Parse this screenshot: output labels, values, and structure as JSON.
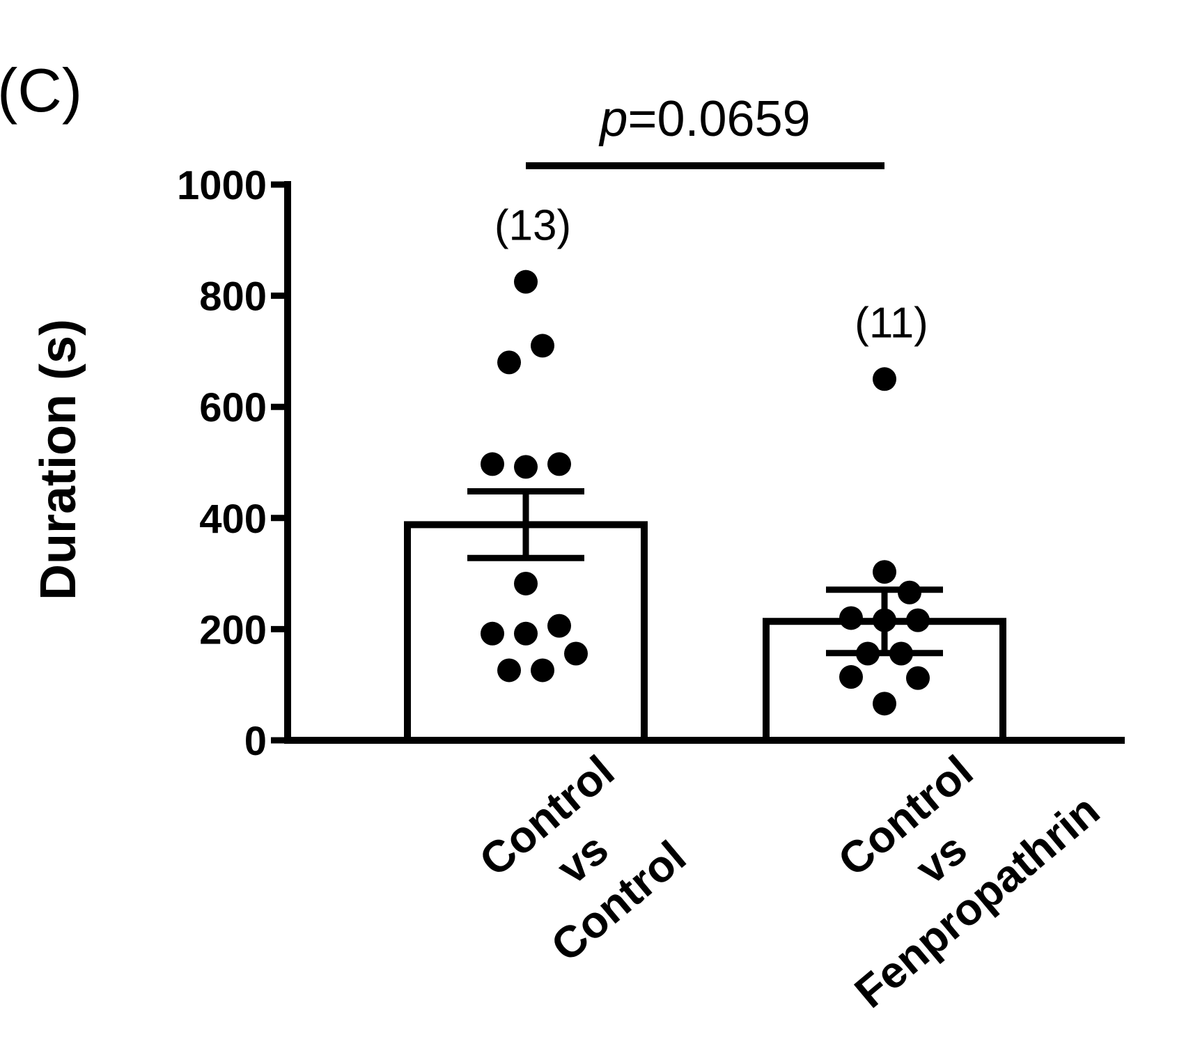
{
  "panel_label": "(C)",
  "chart_data": {
    "type": "bar",
    "title": "",
    "xlabel": "",
    "ylabel": "Duration (s)",
    "ylim": [
      0,
      1000
    ],
    "yticks": [
      0,
      200,
      400,
      600,
      800,
      1000
    ],
    "categories": [
      [
        "Control",
        "vs",
        "Control"
      ],
      [
        "Control",
        "vs",
        "Fenpropathrin"
      ]
    ],
    "values": [
      388,
      214
    ],
    "sem": [
      60,
      57
    ],
    "n_labels": [
      "(13)",
      "(11)"
    ],
    "points": [
      [
        825,
        710,
        680,
        497,
        492,
        497,
        282,
        192,
        192,
        206,
        156,
        126,
        126
      ],
      [
        650,
        303,
        266,
        220,
        216,
        216,
        156,
        156,
        114,
        112,
        66
      ]
    ],
    "significance": {
      "prefix": "p",
      "text": "=0.0659",
      "between": [
        0,
        1
      ]
    },
    "grid": false,
    "legend": "none",
    "bar_fill": "#ffffff",
    "stroke_color": "#000000"
  }
}
